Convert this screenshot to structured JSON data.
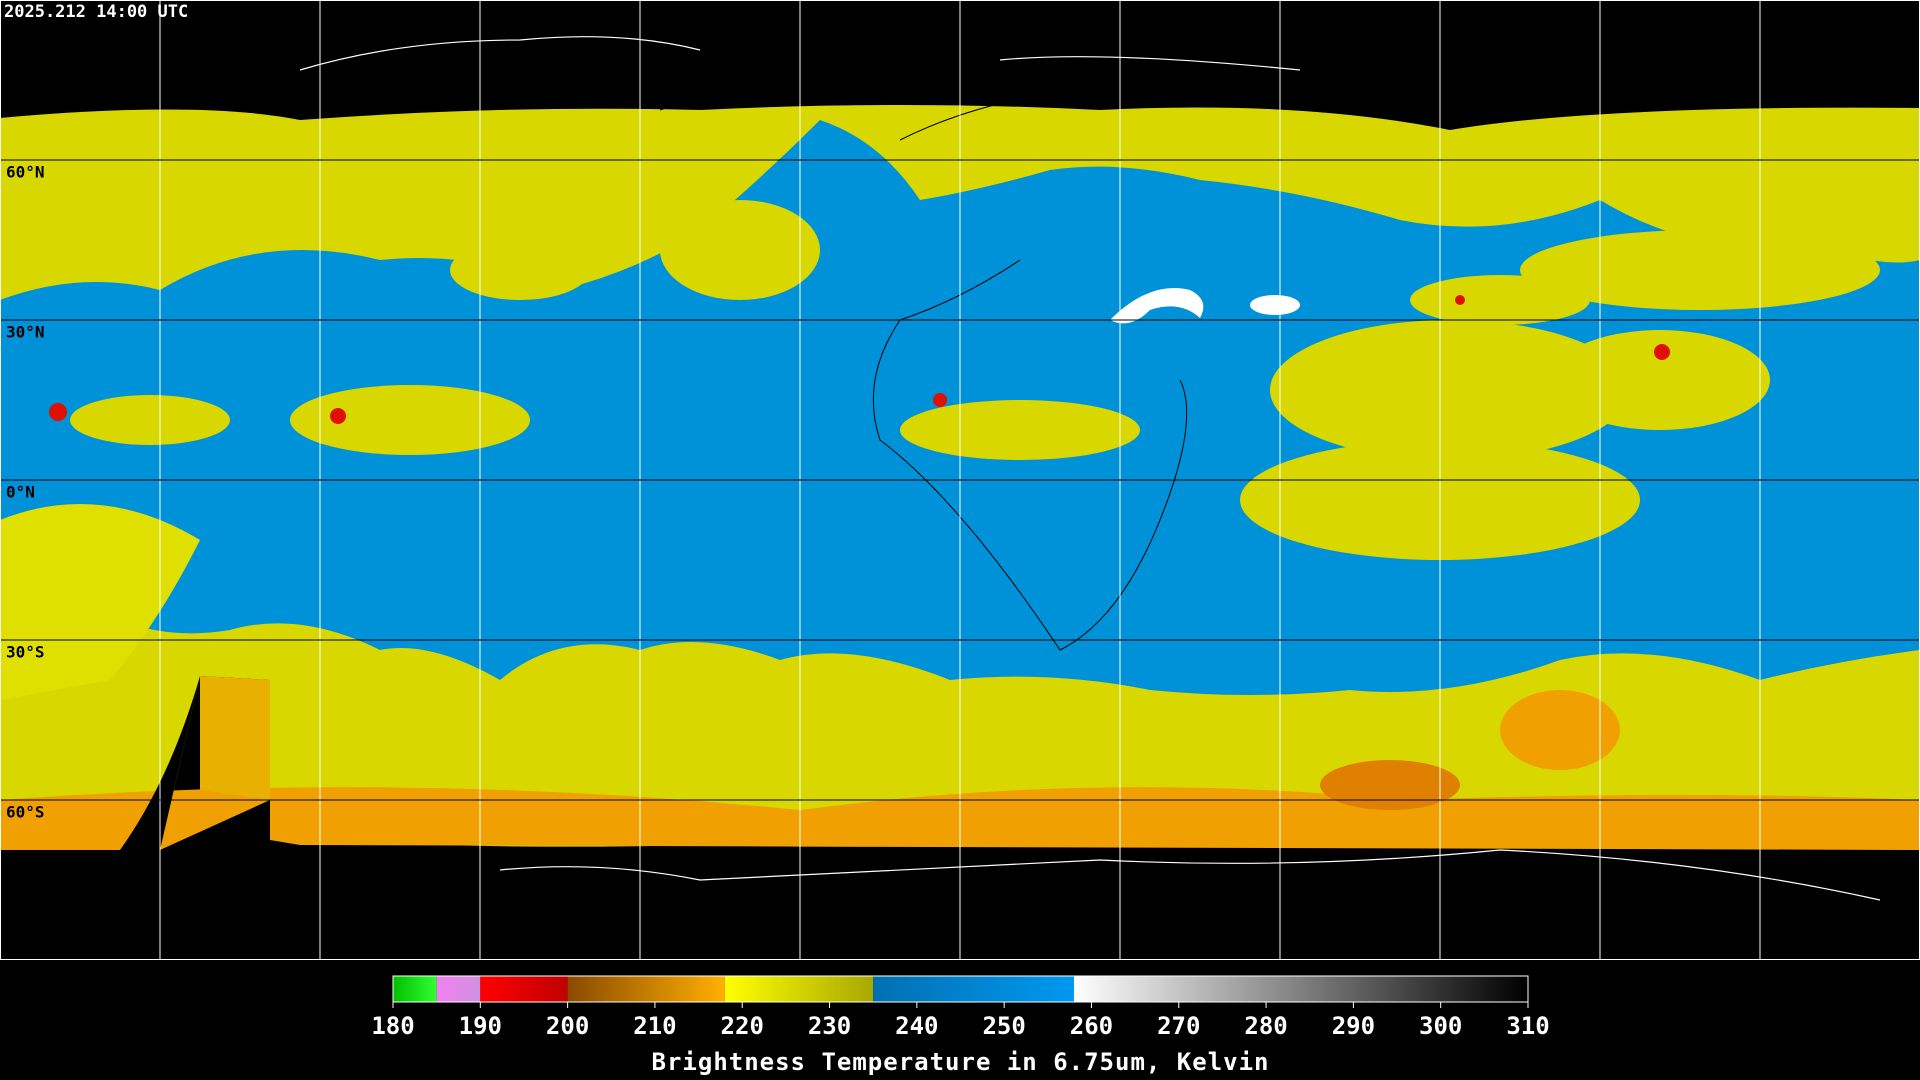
{
  "timestamp": "2025.212 14:00 UTC",
  "map": {
    "lon_range": [
      -180,
      180
    ],
    "lat_range": [
      -90,
      90
    ],
    "lon_lines": [
      -150,
      -120,
      -90,
      -60,
      -30,
      0,
      30,
      60,
      90,
      120,
      150
    ],
    "lat_lines": [
      {
        "value": 60,
        "label": "60°N"
      },
      {
        "value": 30,
        "label": "30°N"
      },
      {
        "value": 0,
        "label": "0°N"
      },
      {
        "value": -30,
        "label": "30°S"
      },
      {
        "value": -60,
        "label": "60°S"
      }
    ]
  },
  "colorbar": {
    "range": [
      180,
      310
    ],
    "ticks": [
      180,
      190,
      200,
      210,
      220,
      230,
      240,
      250,
      260,
      270,
      280,
      290,
      300,
      310
    ],
    "segments": [
      {
        "from": 180,
        "to": 185,
        "colors": [
          "#00c000",
          "#30ff30"
        ]
      },
      {
        "from": 185,
        "to": 190,
        "colors": [
          "#f080f0",
          "#d090e0"
        ]
      },
      {
        "from": 190,
        "to": 200,
        "colors": [
          "#ff0000",
          "#c00000"
        ]
      },
      {
        "from": 200,
        "to": 218,
        "colors": [
          "#8a4a00",
          "#ffb000"
        ]
      },
      {
        "from": 218,
        "to": 235,
        "colors": [
          "#ffff00",
          "#a8a800"
        ]
      },
      {
        "from": 235,
        "to": 258,
        "colors": [
          "#0070b0",
          "#0098f0"
        ]
      },
      {
        "from": 258,
        "to": 310,
        "colors": [
          "#ffffff",
          "#000000"
        ]
      }
    ],
    "label": "Brightness Temperature in 6.75um, Kelvin"
  }
}
